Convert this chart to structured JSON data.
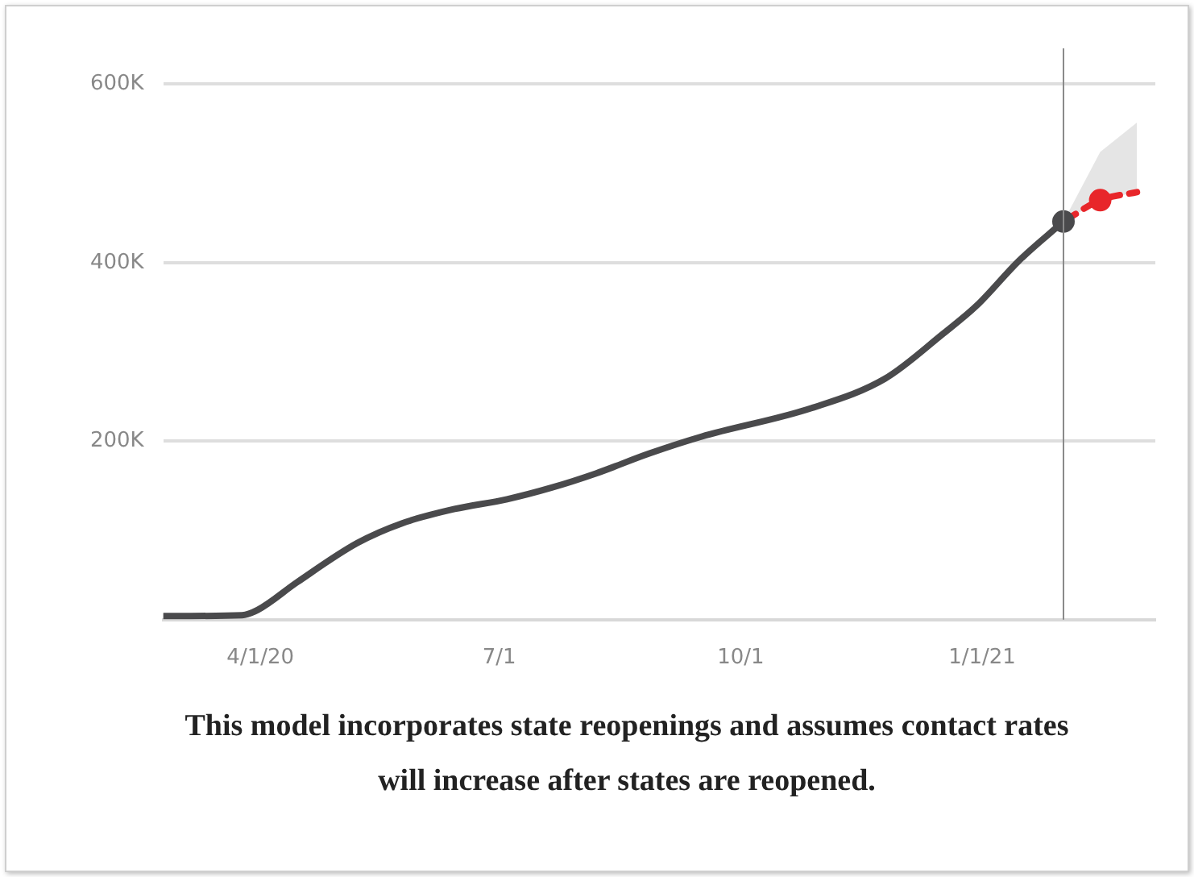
{
  "chart_data": {
    "type": "line",
    "annotations": [
      "This model incorporates state reopenings and assumes contact rates will increase after states are reopened."
    ],
    "series": [
      {
        "color": "#4a4a4c",
        "line_style": "solid",
        "marker": "none",
        "x": [
          "2020-02-24",
          "2020-03-25",
          "2020-03-31",
          "2020-04-15",
          "2020-05-08",
          "2020-05-25",
          "2020-06-14",
          "2020-07-04",
          "2020-07-21",
          "2020-08-07",
          "2020-08-27",
          "2020-09-16",
          "2020-10-28",
          "2020-11-25",
          "2020-12-17",
          "2020-12-30",
          "2021-01-15",
          "2021-02-01"
        ],
        "values": [
          4000,
          5000,
          11000,
          42000,
          86000,
          108000,
          124000,
          135000,
          148000,
          164000,
          186000,
          205000,
          237000,
          270000,
          320000,
          352000,
          402000,
          446000
        ]
      },
      {
        "color": "#e8262a",
        "line_style": "dashed",
        "marker": "none",
        "x": [
          "2021-02-01",
          "2021-02-15",
          "2021-03-01"
        ],
        "values": [
          446000,
          470000,
          479000
        ],
        "lower": [
          446000,
          470000,
          479000
        ],
        "upper": [
          446000,
          524000,
          557000
        ]
      },
      {
        "color": "#4a4a4c",
        "type": "scatter",
        "marker": "circle",
        "x": [
          "2021-02-01"
        ],
        "values": [
          446000
        ]
      },
      {
        "color": "#e8262a",
        "type": "scatter",
        "marker": "circle",
        "x": [
          "2021-02-15"
        ],
        "values": [
          470000
        ]
      }
    ],
    "xlim": [
      "2020-02-24",
      "2021-03-08"
    ],
    "xticks": [
      {
        "value": "2020-04-01",
        "label": "4/1/20"
      },
      {
        "value": "2020-07-01",
        "label": "7/1"
      },
      {
        "value": "2020-10-01",
        "label": "10/1"
      },
      {
        "value": "2021-01-01",
        "label": "1/1/21"
      }
    ],
    "ylim": [
      0,
      640000
    ],
    "yticks": [
      {
        "value": 0,
        "label": null
      },
      {
        "value": 200000,
        "label": "200K"
      },
      {
        "value": 400000,
        "label": "400K"
      },
      {
        "value": 600000,
        "label": "600K"
      }
    ],
    "ref_lines": [
      {
        "axis": "x",
        "value": "2021-02-01",
        "color": "#8a8a8a"
      }
    ],
    "grid": "y",
    "legend": false
  }
}
